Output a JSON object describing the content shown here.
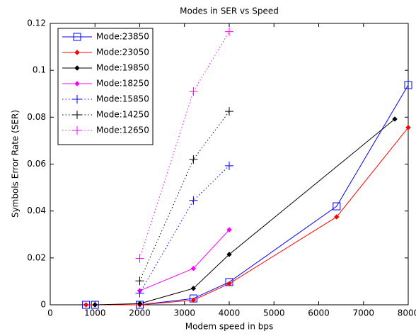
{
  "chart_data": {
    "type": "line",
    "title": "Modes in SER vs Speed",
    "xlabel": "Modem speed in bps",
    "ylabel": "Symbols Error Rate (SER)",
    "xlim": [
      0,
      8000
    ],
    "xticks": [
      0,
      1000,
      2000,
      3000,
      4000,
      5000,
      6000,
      7000,
      8000
    ],
    "ylim": [
      0,
      0.12
    ],
    "yticks": [
      0,
      0.02,
      0.04,
      0.06,
      0.08,
      0.1,
      0.12
    ],
    "legend": "upper-left",
    "series": [
      {
        "name": "Mode:23850",
        "color": "#0000ff",
        "linestyle": "solid",
        "marker": "square",
        "x": [
          800,
          1000,
          2000,
          3200,
          4000,
          6400,
          8000
        ],
        "values": [
          0,
          0,
          0,
          0.0027,
          0.0097,
          0.042,
          0.0937
        ]
      },
      {
        "name": "Mode:23050",
        "color": "#ff0000",
        "linestyle": "solid",
        "marker": "dot",
        "x": [
          800,
          1000,
          2000,
          3200,
          4000,
          6400,
          8000
        ],
        "values": [
          0,
          0,
          0,
          0.002,
          0.009,
          0.0375,
          0.0756
        ]
      },
      {
        "name": "Mode:19850",
        "color": "#000000",
        "linestyle": "solid",
        "marker": "dot",
        "x": [
          1000,
          2000,
          3200,
          4000,
          7700
        ],
        "values": [
          0,
          0.0005,
          0.007,
          0.0215,
          0.0792
        ]
      },
      {
        "name": "Mode:18250",
        "color": "#ff00ff",
        "linestyle": "solid",
        "marker": "dot",
        "x": [
          2000,
          3200,
          4000
        ],
        "values": [
          0.006,
          0.0155,
          0.032
        ]
      },
      {
        "name": "Mode:15850",
        "color": "#0000ff",
        "linestyle": "dotted",
        "marker": "plus",
        "x": [
          2000,
          3200,
          4000
        ],
        "values": [
          0.005,
          0.0445,
          0.0593
        ]
      },
      {
        "name": "Mode:14250",
        "color": "#000000",
        "linestyle": "dotted",
        "marker": "plus",
        "x": [
          2000,
          3200,
          4000
        ],
        "values": [
          0.0102,
          0.062,
          0.0825
        ]
      },
      {
        "name": "Mode:12650",
        "color": "#ff00ff",
        "linestyle": "dotted",
        "marker": "plus",
        "x": [
          2000,
          3200,
          4000
        ],
        "values": [
          0.0198,
          0.091,
          0.1165
        ]
      }
    ]
  }
}
